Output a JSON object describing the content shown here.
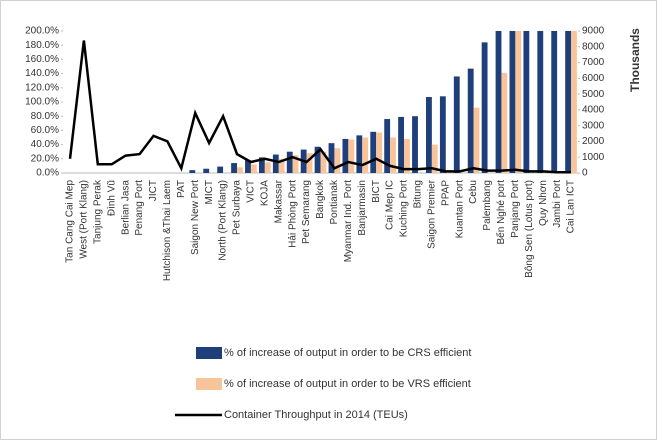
{
  "chart_data": {
    "type": "bar-line",
    "y2_label": "Thousands",
    "categories": [
      "Tan Cang Cai Mep",
      "West (Port Klang)",
      "Tanjung Perak",
      "Đình Vũ",
      "Berlian Jasa",
      "Penang Port",
      "JICT",
      "Hutchison &Thai Laem",
      "PAT",
      "Saigon New Port",
      "MICT",
      "North (Port Klang)",
      "Pet Surbaya",
      "VICT",
      "KOJA",
      "Makassar",
      "Hải Phòng Port",
      "Pet Semarang",
      "Bangkok",
      "Pontianak",
      "Myanmar Ind. Port",
      "Banjarmasin",
      "BICT",
      "Cai Mep IC",
      "Kuching Port",
      "Bitung",
      "Saigon Premier",
      "PPAP",
      "Kuantan Port",
      "Cebu",
      "Palembang",
      "Bến Nghé port",
      "Panjang Port",
      "Bông Sen (Lotus port)",
      "Quy Nhơn",
      "Jambi Port",
      "Cai Lan ICT"
    ],
    "series": [
      {
        "name": "% of increase of output in order to be CRS efficient",
        "color": "#1f3f7a",
        "values": [
          0,
          0,
          0,
          0,
          0,
          0,
          0,
          0,
          0,
          4,
          6,
          9,
          14,
          18,
          22,
          26,
          30,
          33,
          37,
          42,
          48,
          53,
          58,
          76,
          79,
          80,
          107,
          108,
          136,
          147,
          184,
          200,
          200,
          200,
          200,
          200,
          200
        ]
      },
      {
        "name": "% of increase of output in order to be VRS efficient",
        "color": "#f9c49a",
        "values": [
          0,
          0,
          0,
          0,
          0,
          0,
          0,
          0,
          0,
          0,
          0,
          0,
          8,
          12,
          15,
          20,
          25,
          28,
          30,
          35,
          47,
          50,
          57,
          50,
          48,
          0,
          40,
          0,
          0,
          92,
          0,
          141,
          200,
          0,
          0,
          0,
          200
        ]
      },
      {
        "name": "Container Throughput in 2014 (TEUs)",
        "color": "#000000",
        "axis": "y2",
        "values": [
          900,
          8400,
          550,
          550,
          1100,
          1200,
          2350,
          2000,
          300,
          3800,
          1900,
          3600,
          1200,
          700,
          900,
          700,
          1000,
          700,
          1500,
          300,
          700,
          500,
          900,
          450,
          250,
          250,
          300,
          100,
          100,
          300,
          150,
          150,
          200,
          100,
          100,
          50,
          50
        ]
      }
    ],
    "ylim": [
      0,
      200
    ],
    "yticks": [
      {
        "value": 0,
        "label": "0.0%"
      },
      {
        "value": 20,
        "label": "20.0%"
      },
      {
        "value": 40,
        "label": "40.0%"
      },
      {
        "value": 60,
        "label": "60.0%"
      },
      {
        "value": 80,
        "label": "80.0%"
      },
      {
        "value": 100,
        "label": "100.0%"
      },
      {
        "value": 120,
        "label": "120.0%"
      },
      {
        "value": 140,
        "label": "140.0%"
      },
      {
        "value": 160,
        "label": "160.0%"
      },
      {
        "value": 180,
        "label": "180.0%"
      },
      {
        "value": 200,
        "label": "200.0%"
      }
    ],
    "y2lim": [
      0,
      9000
    ],
    "y2ticks": [
      0,
      1000,
      2000,
      3000,
      4000,
      5000,
      6000,
      7000,
      8000,
      9000
    ],
    "legend": "bottom"
  }
}
